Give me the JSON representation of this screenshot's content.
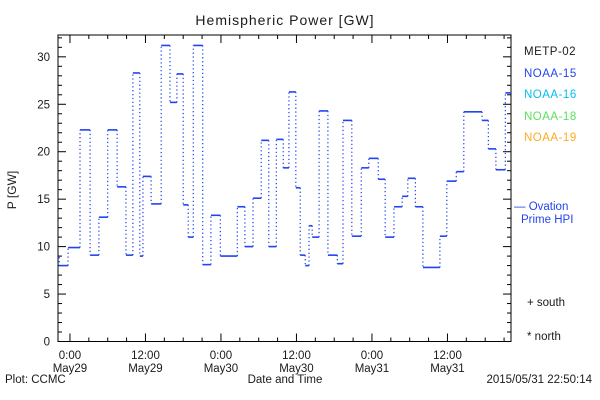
{
  "title": "Hemispheric Power [GW]",
  "y_axis": {
    "label": "P [GW]"
  },
  "x_axis": {
    "label": "Date and Time"
  },
  "legend": {
    "satellites": [
      {
        "label": "METP-02",
        "color": "#1a1a1a"
      },
      {
        "label": "NOAA-15",
        "color": "#2244ee"
      },
      {
        "label": "NOAA-16",
        "color": "#00bfee"
      },
      {
        "label": "NOAA-18",
        "color": "#5ce05c"
      },
      {
        "label": "NOAA-19",
        "color": "#ffaa22"
      }
    ],
    "ovation_dash": "—",
    "ovation_line1": "Ovation",
    "ovation_line2": "Prime HPI",
    "ovation_color": "#2244ee",
    "south_label": "+ south",
    "north_label": "* north"
  },
  "footer": {
    "left": "Plot: CCMC",
    "right": "2015/05/31 22:50:14"
  },
  "chart_data": {
    "type": "line",
    "style": "step plot: solid horizontal satellite-pass segments joined by dotted vertical connectors",
    "series_name": "Ovation Prime HPI",
    "title": "Hemispheric Power [GW]",
    "xlabel": "Date and Time",
    "ylabel": "P [GW]",
    "line_color": "#2244ee",
    "x_unit": "hours since 2015-05-29 00:00",
    "xlim": [
      -1.9,
      70.1
    ],
    "ylim": [
      0,
      32.3
    ],
    "grid": false,
    "y_major_ticks": [
      0,
      5,
      10,
      15,
      20,
      25,
      30
    ],
    "y_minor_step": 1,
    "x_minor_step_hours": 3,
    "x_major_ticks": [
      {
        "t": 0,
        "time": "0:00",
        "date": "May29"
      },
      {
        "t": 12,
        "time": "12:00",
        "date": "May29"
      },
      {
        "t": 24,
        "time": "0:00",
        "date": "May30"
      },
      {
        "t": 36,
        "time": "12:00",
        "date": "May30"
      },
      {
        "t": 48,
        "time": "0:00",
        "date": "May31"
      },
      {
        "t": 60,
        "time": "12:00",
        "date": "May31"
      }
    ],
    "steps": [
      [
        -1.9,
        8.9
      ],
      [
        -1.7,
        8.0
      ],
      [
        -0.3,
        9.9
      ],
      [
        1.6,
        22.3
      ],
      [
        3.2,
        9.1
      ],
      [
        4.6,
        13.1
      ],
      [
        6.0,
        22.3
      ],
      [
        7.5,
        16.3
      ],
      [
        8.9,
        9.1
      ],
      [
        10.0,
        28.3
      ],
      [
        11.1,
        9.0
      ],
      [
        11.6,
        17.4
      ],
      [
        12.9,
        14.5
      ],
      [
        14.5,
        31.2
      ],
      [
        15.9,
        25.2
      ],
      [
        17.0,
        28.2
      ],
      [
        18.0,
        14.4
      ],
      [
        18.8,
        11.0
      ],
      [
        19.6,
        31.2
      ],
      [
        21.1,
        8.1
      ],
      [
        22.4,
        13.3
      ],
      [
        23.9,
        9.0
      ],
      [
        26.6,
        14.2
      ],
      [
        27.8,
        10.0
      ],
      [
        29.1,
        15.1
      ],
      [
        30.4,
        21.2
      ],
      [
        31.6,
        10.0
      ],
      [
        32.8,
        21.3
      ],
      [
        33.9,
        18.3
      ],
      [
        34.8,
        26.3
      ],
      [
        35.9,
        16.2
      ],
      [
        36.6,
        9.1
      ],
      [
        37.4,
        8.0
      ],
      [
        38.0,
        12.2
      ],
      [
        38.5,
        11.0
      ],
      [
        39.6,
        24.3
      ],
      [
        41.0,
        9.1
      ],
      [
        42.5,
        8.2
      ],
      [
        43.4,
        23.3
      ],
      [
        44.8,
        11.1
      ],
      [
        46.3,
        18.3
      ],
      [
        47.5,
        19.3
      ],
      [
        49.0,
        17.1
      ],
      [
        50.1,
        11.0
      ],
      [
        51.5,
        14.2
      ],
      [
        52.8,
        15.3
      ],
      [
        53.7,
        17.2
      ],
      [
        54.9,
        14.2
      ],
      [
        56.1,
        7.8
      ],
      [
        58.8,
        11.1
      ],
      [
        59.9,
        16.9
      ],
      [
        61.4,
        17.9
      ],
      [
        62.6,
        24.2
      ],
      [
        65.5,
        23.3
      ],
      [
        66.5,
        20.3
      ],
      [
        67.7,
        18.1
      ],
      [
        69.2,
        26.2
      ]
    ]
  }
}
